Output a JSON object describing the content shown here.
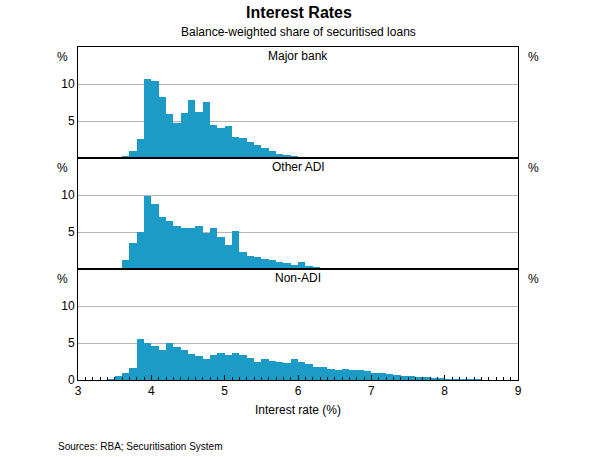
{
  "chart_data": {
    "type": "histogram",
    "title": "Interest Rates",
    "subtitle": "Balance-weighted share of securitised loans",
    "x_label": "Interest rate (%)",
    "y_label": "%",
    "source": "Sources: RBA; Securitisation System",
    "color": "#1b9bc6",
    "grid": true,
    "xlim": [
      3,
      9
    ],
    "xticks": [
      3,
      4,
      5,
      6,
      7,
      8,
      9
    ],
    "ylim": [
      0,
      15
    ],
    "yticks": [
      0,
      5,
      10
    ],
    "bins": [
      3,
      3.1,
      3.2,
      3.3,
      3.4,
      3.5,
      3.6,
      3.7,
      3.8,
      3.9,
      4,
      4.1,
      4.2,
      4.3,
      4.4,
      4.5,
      4.6,
      4.7,
      4.8,
      4.9,
      5,
      5.1,
      5.2,
      5.3,
      5.4,
      5.5,
      5.6,
      5.7,
      5.8,
      5.9,
      6,
      6.1,
      6.2,
      6.3,
      6.4,
      6.5,
      6.6,
      6.7,
      6.8,
      6.9,
      7,
      7.1,
      7.2,
      7.3,
      7.4,
      7.5,
      7.6,
      7.7,
      7.8,
      7.9,
      8,
      8.1,
      8.2,
      8.3,
      8.4,
      8.5,
      8.6,
      8.7,
      8.8,
      8.9,
      9
    ],
    "series": [
      {
        "name": "Major bank",
        "values": [
          0,
          0,
          0,
          0,
          0,
          0,
          0.3,
          1.0,
          2.6,
          10.7,
          10.4,
          8.3,
          6.0,
          4.7,
          6.1,
          7.8,
          6.2,
          7.6,
          4.4,
          4.0,
          4.3,
          2.8,
          2.7,
          2.1,
          1.7,
          1.3,
          0.9,
          0.6,
          0.4,
          0.3,
          0.2,
          0.1,
          0,
          0,
          0,
          0,
          0,
          0,
          0,
          0,
          0,
          0,
          0,
          0,
          0,
          0,
          0,
          0,
          0,
          0,
          0,
          0,
          0,
          0,
          0,
          0,
          0,
          0,
          0,
          0
        ]
      },
      {
        "name": "Other ADI",
        "values": [
          0,
          0,
          0,
          0,
          0,
          0,
          1.2,
          3.5,
          5.0,
          9.8,
          8.8,
          7.0,
          6.5,
          5.8,
          5.6,
          5.6,
          5.8,
          4.8,
          5.5,
          4.3,
          3.3,
          5.2,
          2.3,
          1.8,
          1.6,
          1.4,
          1.2,
          1.0,
          0.8,
          0.6,
          0.9,
          0.4,
          0.3,
          0.2,
          0.1,
          0,
          0,
          0,
          0,
          0,
          0,
          0,
          0,
          0,
          0,
          0,
          0,
          0,
          0,
          0,
          0,
          0,
          0,
          0,
          0,
          0,
          0,
          0,
          0,
          0
        ]
      },
      {
        "name": "Non-ADI",
        "values": [
          0,
          0,
          0,
          0,
          0.1,
          0.5,
          1.0,
          1.6,
          5.5,
          5.0,
          4.6,
          4.0,
          5.0,
          4.5,
          4.0,
          3.5,
          3.2,
          2.8,
          3.4,
          3.6,
          3.4,
          3.7,
          3.4,
          3.0,
          2.5,
          2.8,
          2.6,
          2.4,
          2.3,
          2.8,
          2.4,
          2.2,
          1.8,
          1.7,
          1.5,
          1.4,
          1.5,
          1.4,
          1.3,
          1.2,
          1.0,
          0.9,
          0.8,
          0.7,
          0.6,
          0.5,
          0.4,
          0.4,
          0.3,
          0.3,
          0.2,
          0.2,
          0.15,
          0.1,
          0.1,
          0.05,
          0.05,
          0,
          0,
          0
        ]
      }
    ]
  }
}
